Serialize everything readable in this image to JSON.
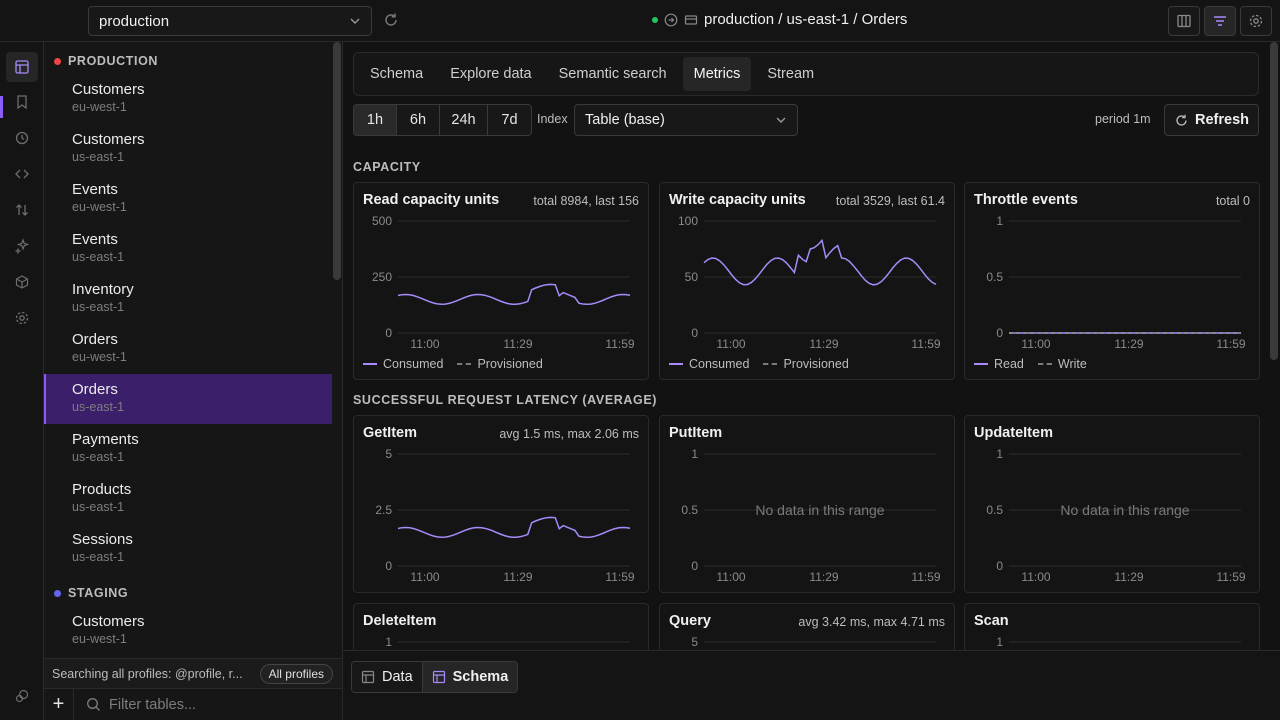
{
  "header": {
    "profile": "production",
    "breadcrumb": "production / us-east-1 / Orders"
  },
  "sidebar": {
    "groups": [
      {
        "name": "PRODUCTION",
        "color": "#ef4444",
        "tables": [
          {
            "name": "Customers",
            "region": "eu-west-1"
          },
          {
            "name": "Customers",
            "region": "us-east-1"
          },
          {
            "name": "Events",
            "region": "eu-west-1"
          },
          {
            "name": "Events",
            "region": "us-east-1"
          },
          {
            "name": "Inventory",
            "region": "us-east-1"
          },
          {
            "name": "Orders",
            "region": "eu-west-1"
          },
          {
            "name": "Orders",
            "region": "us-east-1",
            "selected": true
          },
          {
            "name": "Payments",
            "region": "us-east-1"
          },
          {
            "name": "Products",
            "region": "us-east-1"
          },
          {
            "name": "Sessions",
            "region": "us-east-1"
          }
        ]
      },
      {
        "name": "STAGING",
        "color": "#6366f1",
        "tables": [
          {
            "name": "Customers",
            "region": "eu-west-1"
          }
        ]
      }
    ],
    "footer_text": "Searching all profiles: @profile, r...",
    "all_profiles": "All profiles",
    "filter_placeholder": "Filter tables..."
  },
  "tabs": [
    "Schema",
    "Explore data",
    "Semantic search",
    "Metrics",
    "Stream"
  ],
  "active_tab": "Metrics",
  "toolbar": {
    "ranges": [
      "1h",
      "6h",
      "24h",
      "7d"
    ],
    "active_range": "1h",
    "index_label": "Index",
    "index_value": "Table (base)",
    "period": "period 1m",
    "refresh": "Refresh"
  },
  "sections": {
    "capacity": "CAPACITY",
    "latency": "SUCCESSFUL REQUEST LATENCY (AVERAGE)"
  },
  "x_ticks": [
    "11:00",
    "11:29",
    "11:59"
  ],
  "no_data_text": "No data in this range",
  "cards": {
    "read": {
      "title": "Read capacity units",
      "stat": "total 8984, last 156",
      "yticks": [
        "500",
        "250",
        "0"
      ],
      "legend": [
        "Consumed",
        "Provisioned"
      ]
    },
    "write": {
      "title": "Write capacity units",
      "stat": "total 3529, last 61.4",
      "yticks": [
        "100",
        "50",
        "0"
      ],
      "legend": [
        "Consumed",
        "Provisioned"
      ]
    },
    "throttle": {
      "title": "Throttle events",
      "stat": "total 0",
      "yticks": [
        "1",
        "0.5",
        "0"
      ],
      "legend": [
        "Read",
        "Write"
      ]
    },
    "getitem": {
      "title": "GetItem",
      "stat": "avg 1.5 ms, max 2.06 ms",
      "yticks": [
        "5",
        "2.5",
        "0"
      ]
    },
    "putitem": {
      "title": "PutItem",
      "yticks": [
        "1",
        "0.5",
        "0"
      ]
    },
    "updateitem": {
      "title": "UpdateItem",
      "yticks": [
        "1",
        "0.5",
        "0"
      ]
    },
    "deleteitem": {
      "title": "DeleteItem",
      "yticks": [
        "1"
      ]
    },
    "query": {
      "title": "Query",
      "stat": "avg 3.42 ms, max 4.71 ms",
      "yticks": [
        "5"
      ]
    },
    "scan": {
      "title": "Scan",
      "yticks": [
        "1"
      ]
    }
  },
  "bottom": {
    "data": "Data",
    "schema": "Schema"
  },
  "accent": "#a78bfa"
}
